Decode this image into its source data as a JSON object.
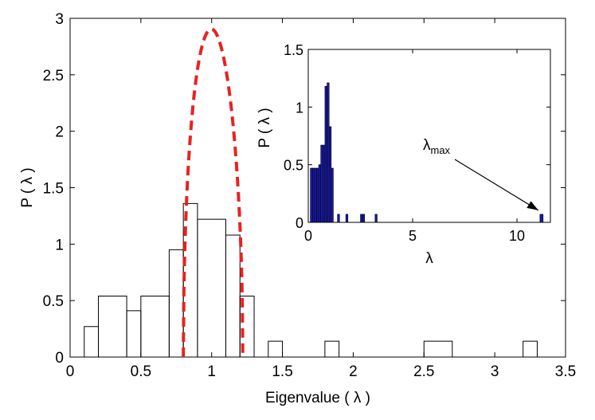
{
  "chart_data": [
    {
      "type": "step",
      "xlabel": "Eigenvalue ( λ )",
      "ylabel": "P ( λ )",
      "xlim": [
        0,
        3.5
      ],
      "ylim": [
        0,
        3
      ],
      "xticks": [
        "0",
        "0.5",
        "1",
        "1.5",
        "2",
        "2.5",
        "3",
        "3.5"
      ],
      "yticks": [
        "0",
        "0.5",
        "1",
        "1.5",
        "2",
        "2.5",
        "3"
      ],
      "grid": false,
      "histogram": {
        "bins": [
          {
            "x0": 0.1,
            "x1": 0.2,
            "y": 0.27
          },
          {
            "x0": 0.2,
            "x1": 0.4,
            "y": 0.54
          },
          {
            "x0": 0.4,
            "x1": 0.5,
            "y": 0.41
          },
          {
            "x0": 0.5,
            "x1": 0.7,
            "y": 0.54
          },
          {
            "x0": 0.7,
            "x1": 0.8,
            "y": 0.95
          },
          {
            "x0": 0.8,
            "x1": 0.9,
            "y": 1.36
          },
          {
            "x0": 0.9,
            "x1": 1.1,
            "y": 1.22
          },
          {
            "x0": 1.1,
            "x1": 1.2,
            "y": 1.08
          },
          {
            "x0": 1.2,
            "x1": 1.3,
            "y": 0.54
          },
          {
            "x0": 1.4,
            "x1": 1.5,
            "y": 0.14
          },
          {
            "x0": 1.8,
            "x1": 1.9,
            "y": 0.14
          },
          {
            "x0": 2.5,
            "x1": 2.7,
            "y": 0.14
          },
          {
            "x0": 3.2,
            "x1": 3.3,
            "y": 0.14
          }
        ],
        "color": "#000000"
      },
      "theory_curve": {
        "style": "dashed",
        "color": "#e8221f",
        "lambda_min": 0.8,
        "lambda_max": 1.22,
        "peak": 2.9
      }
    },
    {
      "type": "bar",
      "xlabel": "λ",
      "ylabel": "P ( λ )",
      "xlim": [
        0,
        11.6
      ],
      "ylim": [
        0,
        1.5
      ],
      "xticks": [
        "0",
        "5",
        "10"
      ],
      "yticks": [
        "0",
        "0.5",
        "1",
        "1.5"
      ],
      "bar_color": "#1a1aa6",
      "bars": [
        {
          "x0": 0.1,
          "x1": 0.2,
          "y": 0.47
        },
        {
          "x0": 0.2,
          "x1": 0.3,
          "y": 0.47
        },
        {
          "x0": 0.3,
          "x1": 0.4,
          "y": 0.47
        },
        {
          "x0": 0.4,
          "x1": 0.5,
          "y": 0.47
        },
        {
          "x0": 0.5,
          "x1": 0.6,
          "y": 0.5
        },
        {
          "x0": 0.6,
          "x1": 0.7,
          "y": 0.67
        },
        {
          "x0": 0.7,
          "x1": 0.8,
          "y": 0.67
        },
        {
          "x0": 0.8,
          "x1": 0.9,
          "y": 1.18
        },
        {
          "x0": 0.9,
          "x1": 1.0,
          "y": 1.21
        },
        {
          "x0": 1.0,
          "x1": 1.1,
          "y": 0.83
        },
        {
          "x0": 1.1,
          "x1": 1.2,
          "y": 0.47
        },
        {
          "x0": 1.4,
          "x1": 1.5,
          "y": 0.07
        },
        {
          "x0": 1.8,
          "x1": 1.9,
          "y": 0.07
        },
        {
          "x0": 2.5,
          "x1": 2.6,
          "y": 0.07
        },
        {
          "x0": 2.6,
          "x1": 2.7,
          "y": 0.07
        },
        {
          "x0": 3.2,
          "x1": 3.3,
          "y": 0.07
        },
        {
          "x0": 11.1,
          "x1": 11.25,
          "y": 0.07
        }
      ],
      "annotation": {
        "text": "λ",
        "subscript": "max",
        "target_x": 11.1,
        "target_y": 0.07
      }
    }
  ]
}
